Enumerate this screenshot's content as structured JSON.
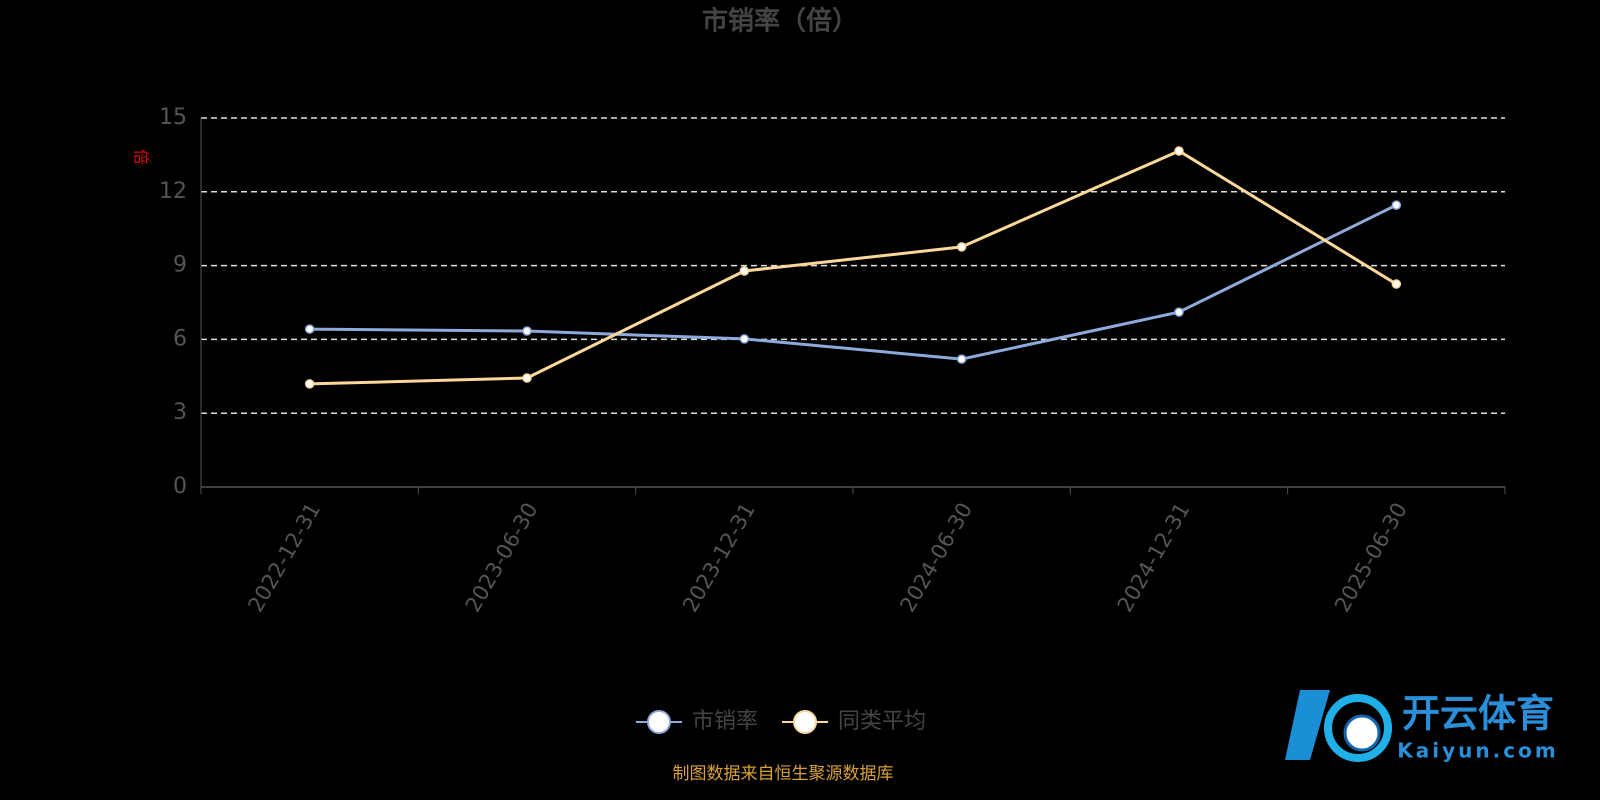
{
  "chart_data": {
    "type": "line",
    "title": "市销率（倍）",
    "y_label": "倍",
    "categories": [
      "2022-12-31",
      "2023-06-30",
      "2023-12-31",
      "2024-06-30",
      "2024-12-31",
      "2025-06-30"
    ],
    "series": [
      {
        "name": "市销率",
        "color": "#8eaadb",
        "values": [
          6.42,
          6.34,
          6.02,
          5.2,
          7.11,
          11.46
        ]
      },
      {
        "name": "同类平均",
        "color": "#fcd79a",
        "values": [
          4.19,
          4.43,
          8.78,
          9.76,
          13.66,
          8.25
        ]
      }
    ],
    "ylim": [
      0,
      15
    ],
    "yticks": [
      0,
      3,
      6,
      9,
      12,
      15
    ],
    "grid": true,
    "source": "制图数据来自恒生聚源数据库"
  },
  "watermark": {
    "title": "开云体育",
    "subtitle": "Kaiyun.com"
  }
}
